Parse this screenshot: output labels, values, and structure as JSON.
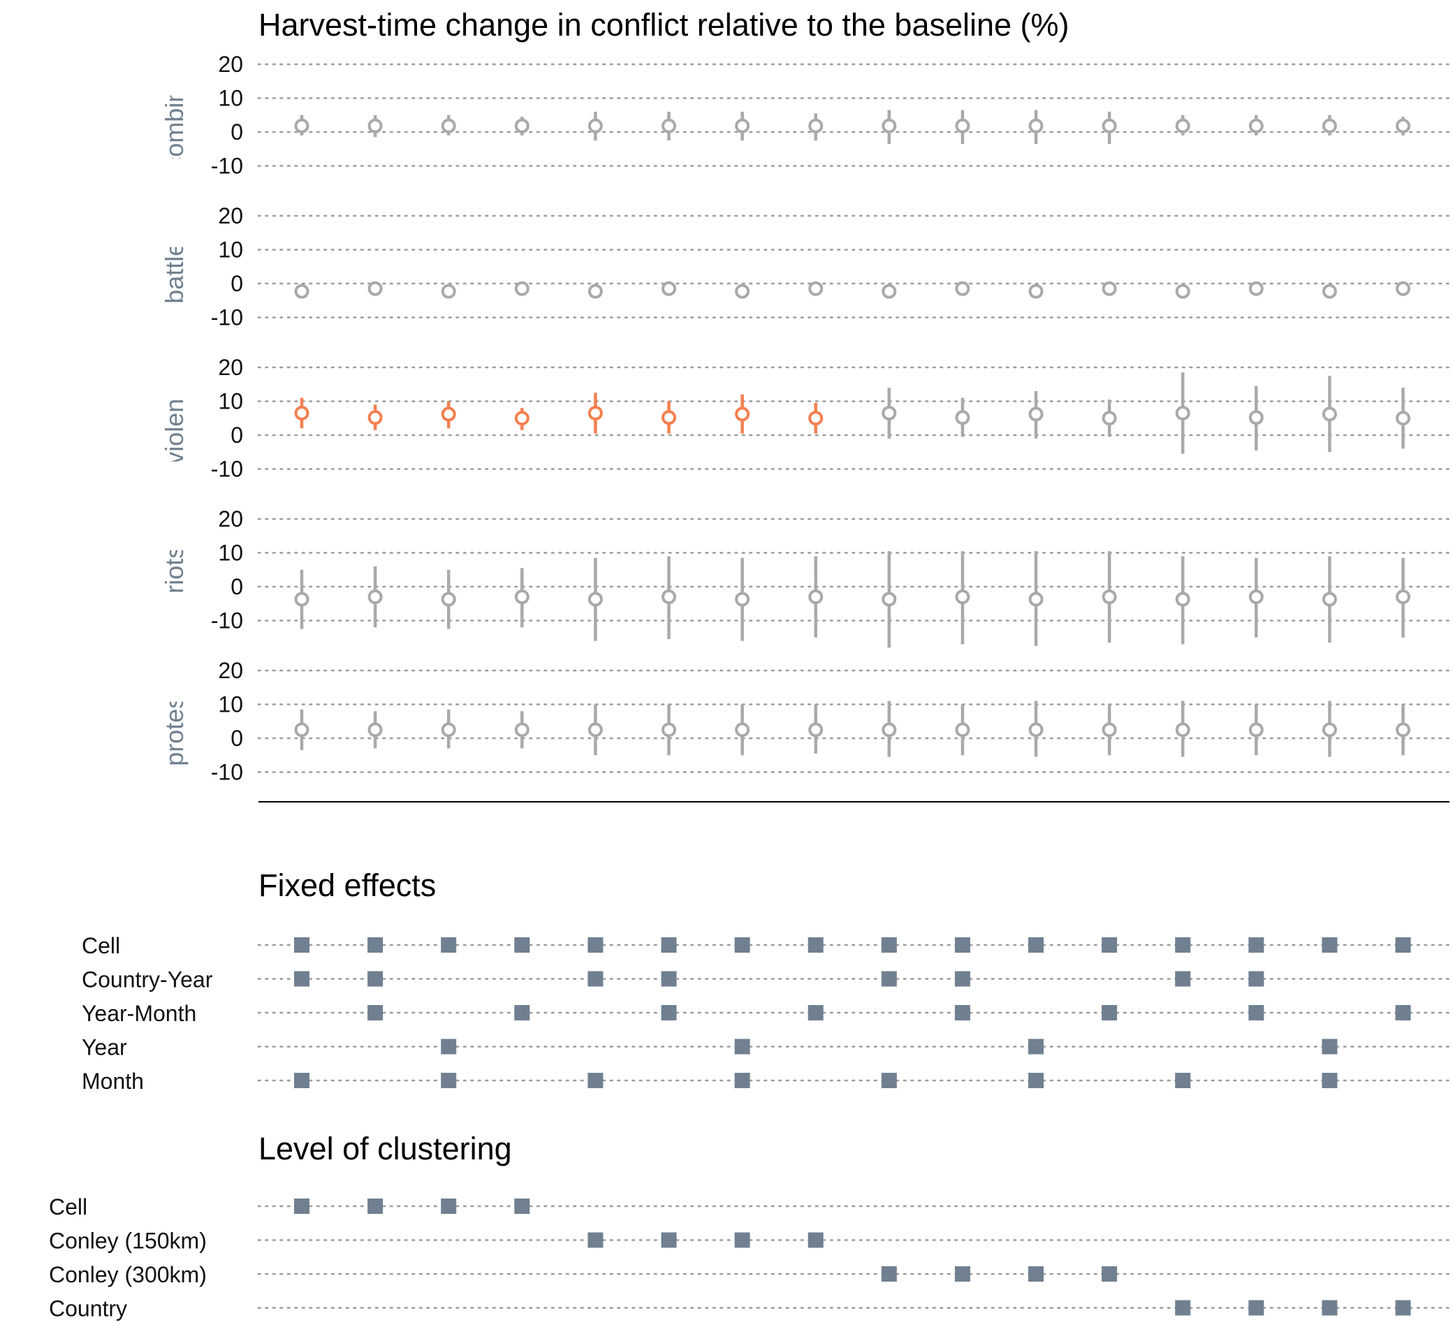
{
  "chart_data": {
    "type": "scatter",
    "subtype": "coefficient plot with confidence intervals and specification indicator matrix",
    "title": "Harvest-time change in conflict relative to the baseline (%)",
    "ylim": [
      -10,
      20
    ],
    "yticks": [
      "20",
      "10",
      "0",
      "-10"
    ],
    "ytick_values": [
      20,
      10,
      0,
      -10
    ],
    "n_specifications": 16,
    "grid": true,
    "colors": {
      "significant": "#F47F4F",
      "not_significant": "#A9A9A9",
      "indicator": "#708090",
      "panel_label": "#708090"
    },
    "panels": [
      {
        "label": "combined",
        "estimates": [
          1.8,
          1.8,
          1.8,
          1.8,
          1.8,
          1.8,
          1.8,
          1.8,
          1.8,
          1.8,
          1.8,
          1.8,
          1.8,
          1.8,
          1.8,
          1.8
        ],
        "lower": [
          -1.0,
          -1.5,
          -1.0,
          -1.0,
          -2.5,
          -2.5,
          -2.5,
          -2.5,
          -3.5,
          -3.5,
          -3.5,
          -3.5,
          -1.0,
          -1.0,
          -1.0,
          -1.0
        ],
        "upper": [
          5.0,
          5.0,
          5.0,
          4.5,
          6.0,
          6.0,
          6.0,
          5.5,
          6.5,
          6.5,
          6.5,
          6.0,
          5.0,
          5.0,
          5.0,
          4.5
        ],
        "significant": [
          false,
          false,
          false,
          false,
          false,
          false,
          false,
          false,
          false,
          false,
          false,
          false,
          false,
          false,
          false,
          false
        ]
      },
      {
        "label": "battles",
        "estimates": [
          -2.3,
          -1.5,
          -2.3,
          -1.5,
          -2.3,
          -1.5,
          -2.3,
          -1.5,
          -2.3,
          -1.5,
          -2.3,
          -1.5,
          -2.3,
          -1.5,
          -2.3,
          -1.5
        ],
        "lower": [
          -2.3,
          -1.5,
          -2.3,
          -1.5,
          -2.3,
          -1.5,
          -2.3,
          -1.5,
          -2.3,
          -1.5,
          -2.3,
          -1.5,
          -2.3,
          -1.5,
          -2.3,
          -1.5
        ],
        "upper": [
          -2.3,
          -1.5,
          -2.3,
          -1.5,
          -2.3,
          -1.5,
          -2.3,
          -1.5,
          -2.3,
          -1.5,
          -2.3,
          -1.5,
          -2.3,
          -1.5,
          -2.3,
          -1.5
        ],
        "significant": [
          false,
          false,
          false,
          false,
          false,
          false,
          false,
          false,
          false,
          false,
          false,
          false,
          false,
          false,
          false,
          false
        ]
      },
      {
        "label": "violence",
        "estimates": [
          6.5,
          5.2,
          6.2,
          5.0,
          6.5,
          5.2,
          6.2,
          5.0,
          6.5,
          5.2,
          6.2,
          5.0,
          6.5,
          5.2,
          6.2,
          5.0
        ],
        "lower": [
          2.0,
          1.5,
          2.0,
          1.5,
          0.5,
          0.5,
          0.5,
          0.5,
          -1.0,
          -0.5,
          -1.0,
          -0.5,
          -5.5,
          -4.5,
          -5.0,
          -4.0
        ],
        "upper": [
          11.0,
          9.0,
          10.0,
          8.0,
          12.5,
          10.0,
          12.0,
          9.5,
          14.0,
          11.0,
          13.0,
          10.5,
          18.5,
          14.5,
          17.5,
          14.0
        ],
        "significant": [
          true,
          true,
          true,
          true,
          true,
          true,
          true,
          true,
          false,
          false,
          false,
          false,
          false,
          false,
          false,
          false
        ]
      },
      {
        "label": "riots",
        "estimates": [
          -3.7,
          -3.0,
          -3.7,
          -3.0,
          -3.7,
          -3.0,
          -3.7,
          -3.0,
          -3.7,
          -3.0,
          -3.7,
          -3.0,
          -3.7,
          -3.0,
          -3.7,
          -3.0
        ],
        "lower": [
          -12.5,
          -12.0,
          -12.5,
          -12.0,
          -16.0,
          -15.5,
          -16.0,
          -15.0,
          -18.0,
          -17.0,
          -17.5,
          -16.5,
          -17.0,
          -15.0,
          -16.5,
          -15.0
        ],
        "upper": [
          5.0,
          6.0,
          5.0,
          5.5,
          8.5,
          9.0,
          8.5,
          9.0,
          10.5,
          10.5,
          10.5,
          10.5,
          9.0,
          8.5,
          9.0,
          8.5
        ],
        "significant": [
          false,
          false,
          false,
          false,
          false,
          false,
          false,
          false,
          false,
          false,
          false,
          false,
          false,
          false,
          false,
          false
        ]
      },
      {
        "label": "protests",
        "estimates": [
          2.5,
          2.5,
          2.5,
          2.5,
          2.5,
          2.5,
          2.5,
          2.5,
          2.5,
          2.5,
          2.5,
          2.5,
          2.5,
          2.5,
          2.5,
          2.5
        ],
        "lower": [
          -3.5,
          -3.0,
          -3.0,
          -3.0,
          -5.0,
          -5.0,
          -5.0,
          -4.5,
          -5.5,
          -5.0,
          -5.5,
          -5.0,
          -5.5,
          -5.0,
          -5.5,
          -5.0
        ],
        "upper": [
          8.5,
          8.0,
          8.5,
          8.0,
          10.0,
          10.0,
          10.0,
          10.0,
          11.0,
          10.0,
          11.0,
          10.0,
          11.0,
          10.0,
          11.0,
          10.0
        ],
        "significant": [
          false,
          false,
          false,
          false,
          false,
          false,
          false,
          false,
          false,
          false,
          false,
          false,
          false,
          false,
          false,
          false
        ]
      }
    ],
    "indicator_tables": [
      {
        "title": "Fixed effects",
        "rows": [
          {
            "label": "Cell",
            "flags": [
              1,
              1,
              1,
              1,
              1,
              1,
              1,
              1,
              1,
              1,
              1,
              1,
              1,
              1,
              1,
              1
            ]
          },
          {
            "label": "Country-Year",
            "flags": [
              1,
              1,
              0,
              0,
              1,
              1,
              0,
              0,
              1,
              1,
              0,
              0,
              1,
              1,
              0,
              0
            ]
          },
          {
            "label": "Year-Month",
            "flags": [
              0,
              1,
              0,
              1,
              0,
              1,
              0,
              1,
              0,
              1,
              0,
              1,
              0,
              1,
              0,
              1
            ]
          },
          {
            "label": "Year",
            "flags": [
              0,
              0,
              1,
              0,
              0,
              0,
              1,
              0,
              0,
              0,
              1,
              0,
              0,
              0,
              1,
              0
            ]
          },
          {
            "label": "Month",
            "flags": [
              1,
              0,
              1,
              0,
              1,
              0,
              1,
              0,
              1,
              0,
              1,
              0,
              1,
              0,
              1,
              0
            ]
          }
        ]
      },
      {
        "title": "Level of clustering",
        "rows": [
          {
            "label": "Cell",
            "flags": [
              1,
              1,
              1,
              1,
              0,
              0,
              0,
              0,
              0,
              0,
              0,
              0,
              0,
              0,
              0,
              0
            ]
          },
          {
            "label": "Conley (150km)",
            "flags": [
              0,
              0,
              0,
              0,
              1,
              1,
              1,
              1,
              0,
              0,
              0,
              0,
              0,
              0,
              0,
              0
            ]
          },
          {
            "label": "Conley (300km)",
            "flags": [
              0,
              0,
              0,
              0,
              0,
              0,
              0,
              0,
              1,
              1,
              1,
              1,
              0,
              0,
              0,
              0
            ]
          },
          {
            "label": "Country",
            "flags": [
              0,
              0,
              0,
              0,
              0,
              0,
              0,
              0,
              0,
              0,
              0,
              0,
              1,
              1,
              1,
              1
            ]
          }
        ]
      }
    ]
  }
}
